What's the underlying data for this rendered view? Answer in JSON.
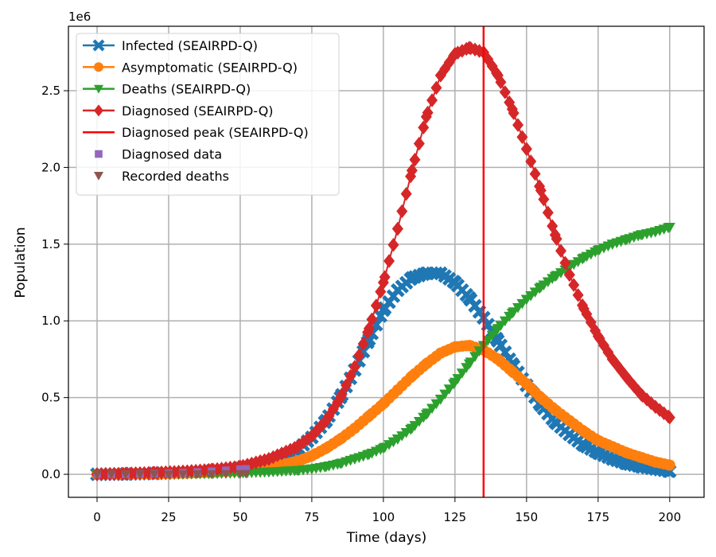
{
  "chart_data": {
    "type": "line",
    "xlabel": "Time (days)",
    "ylabel": "Population",
    "offset_text": "1e6",
    "xlim": [
      -10,
      212
    ],
    "ylim": [
      -0.15,
      2.92
    ],
    "y_unit_multiplier": 1000000,
    "xticks": [
      0,
      25,
      50,
      75,
      100,
      125,
      150,
      175,
      200
    ],
    "xtick_labels": [
      "0",
      "25",
      "50",
      "75",
      "100",
      "125",
      "150",
      "175",
      "200"
    ],
    "yticks": [
      0.0,
      0.5,
      1.0,
      1.5,
      2.0,
      2.5
    ],
    "ytick_labels": [
      "0.0",
      "0.5",
      "1.0",
      "1.5",
      "2.0",
      "2.5"
    ],
    "grid": true,
    "legend_position": "top-left",
    "series": [
      {
        "name": "Infected (SEAIRPD-Q)",
        "color": "#1f77b4",
        "marker": "x-filled",
        "x": [
          0,
          10,
          20,
          30,
          40,
          50,
          60,
          70,
          75,
          80,
          85,
          90,
          95,
          100,
          105,
          110,
          115,
          120,
          125,
          130,
          135,
          140,
          145,
          150,
          155,
          160,
          165,
          170,
          175,
          180,
          185,
          190,
          195,
          200
        ],
        "y": [
          0.0,
          0.002,
          0.006,
          0.012,
          0.022,
          0.04,
          0.08,
          0.16,
          0.24,
          0.35,
          0.5,
          0.68,
          0.88,
          1.07,
          1.2,
          1.28,
          1.31,
          1.31,
          1.25,
          1.15,
          1.02,
          0.87,
          0.72,
          0.58,
          0.45,
          0.34,
          0.26,
          0.19,
          0.14,
          0.1,
          0.07,
          0.05,
          0.035,
          0.02
        ]
      },
      {
        "name": "Asymptomatic (SEAIRPD-Q)",
        "color": "#ff7f0e",
        "marker": "circle",
        "x": [
          0,
          10,
          20,
          30,
          40,
          50,
          60,
          70,
          75,
          80,
          85,
          90,
          95,
          100,
          105,
          110,
          115,
          120,
          125,
          130,
          135,
          140,
          145,
          150,
          155,
          160,
          165,
          170,
          175,
          180,
          185,
          190,
          195,
          200
        ],
        "y": [
          0.0,
          0.001,
          0.003,
          0.007,
          0.013,
          0.024,
          0.045,
          0.085,
          0.12,
          0.17,
          0.23,
          0.3,
          0.38,
          0.46,
          0.55,
          0.64,
          0.72,
          0.79,
          0.83,
          0.84,
          0.81,
          0.75,
          0.67,
          0.59,
          0.5,
          0.42,
          0.35,
          0.28,
          0.22,
          0.18,
          0.14,
          0.11,
          0.08,
          0.06
        ]
      },
      {
        "name": "Deaths (SEAIRPD-Q)",
        "color": "#2ca02c",
        "marker": "triangle-down",
        "x": [
          0,
          10,
          20,
          30,
          40,
          50,
          60,
          70,
          75,
          80,
          85,
          90,
          95,
          100,
          105,
          110,
          115,
          120,
          125,
          130,
          135,
          140,
          145,
          150,
          155,
          160,
          165,
          170,
          175,
          180,
          185,
          190,
          195,
          200
        ],
        "y": [
          0.0,
          0.0,
          0.001,
          0.002,
          0.004,
          0.008,
          0.015,
          0.025,
          0.035,
          0.05,
          0.07,
          0.1,
          0.13,
          0.17,
          0.23,
          0.3,
          0.39,
          0.49,
          0.6,
          0.72,
          0.84,
          0.95,
          1.05,
          1.14,
          1.22,
          1.29,
          1.35,
          1.41,
          1.46,
          1.5,
          1.53,
          1.56,
          1.58,
          1.61
        ]
      },
      {
        "name": "Diagnosed (SEAIRPD-Q)",
        "color": "#d62728",
        "marker": "diamond",
        "x": [
          0,
          10,
          20,
          30,
          40,
          50,
          60,
          70,
          75,
          80,
          85,
          90,
          95,
          100,
          105,
          110,
          115,
          120,
          125,
          130,
          135,
          140,
          145,
          150,
          155,
          160,
          165,
          170,
          175,
          180,
          185,
          190,
          195,
          200
        ],
        "y": [
          0.0,
          0.005,
          0.01,
          0.018,
          0.03,
          0.05,
          0.1,
          0.18,
          0.25,
          0.35,
          0.5,
          0.7,
          0.95,
          1.25,
          1.6,
          1.98,
          2.33,
          2.6,
          2.74,
          2.78,
          2.75,
          2.6,
          2.38,
          2.12,
          1.85,
          1.56,
          1.3,
          1.08,
          0.9,
          0.75,
          0.63,
          0.52,
          0.44,
          0.37
        ]
      }
    ],
    "peak_line": {
      "name": "Diagnosed peak (SEAIRPD-Q)",
      "color": "#ff0000",
      "x": 135
    },
    "data_series": [
      {
        "name": "Diagnosed data",
        "color": "#9467bd",
        "marker": "square",
        "x": [
          0,
          5,
          10,
          15,
          20,
          25,
          30,
          35,
          40,
          45,
          50,
          52
        ],
        "y": [
          0.0,
          0.0,
          0.0,
          0.002,
          0.004,
          0.007,
          0.01,
          0.015,
          0.02,
          0.026,
          0.033,
          0.035
        ]
      },
      {
        "name": "Recorded deaths",
        "color": "#8c564b",
        "marker": "triangle-down",
        "x": [
          0,
          5,
          10,
          15,
          20,
          25,
          30,
          35,
          40,
          45,
          50,
          52
        ],
        "y": [
          0.0,
          0.0,
          0.0,
          0.0,
          0.0,
          0.0,
          0.001,
          0.001,
          0.001,
          0.002,
          0.002,
          0.003
        ]
      }
    ]
  }
}
